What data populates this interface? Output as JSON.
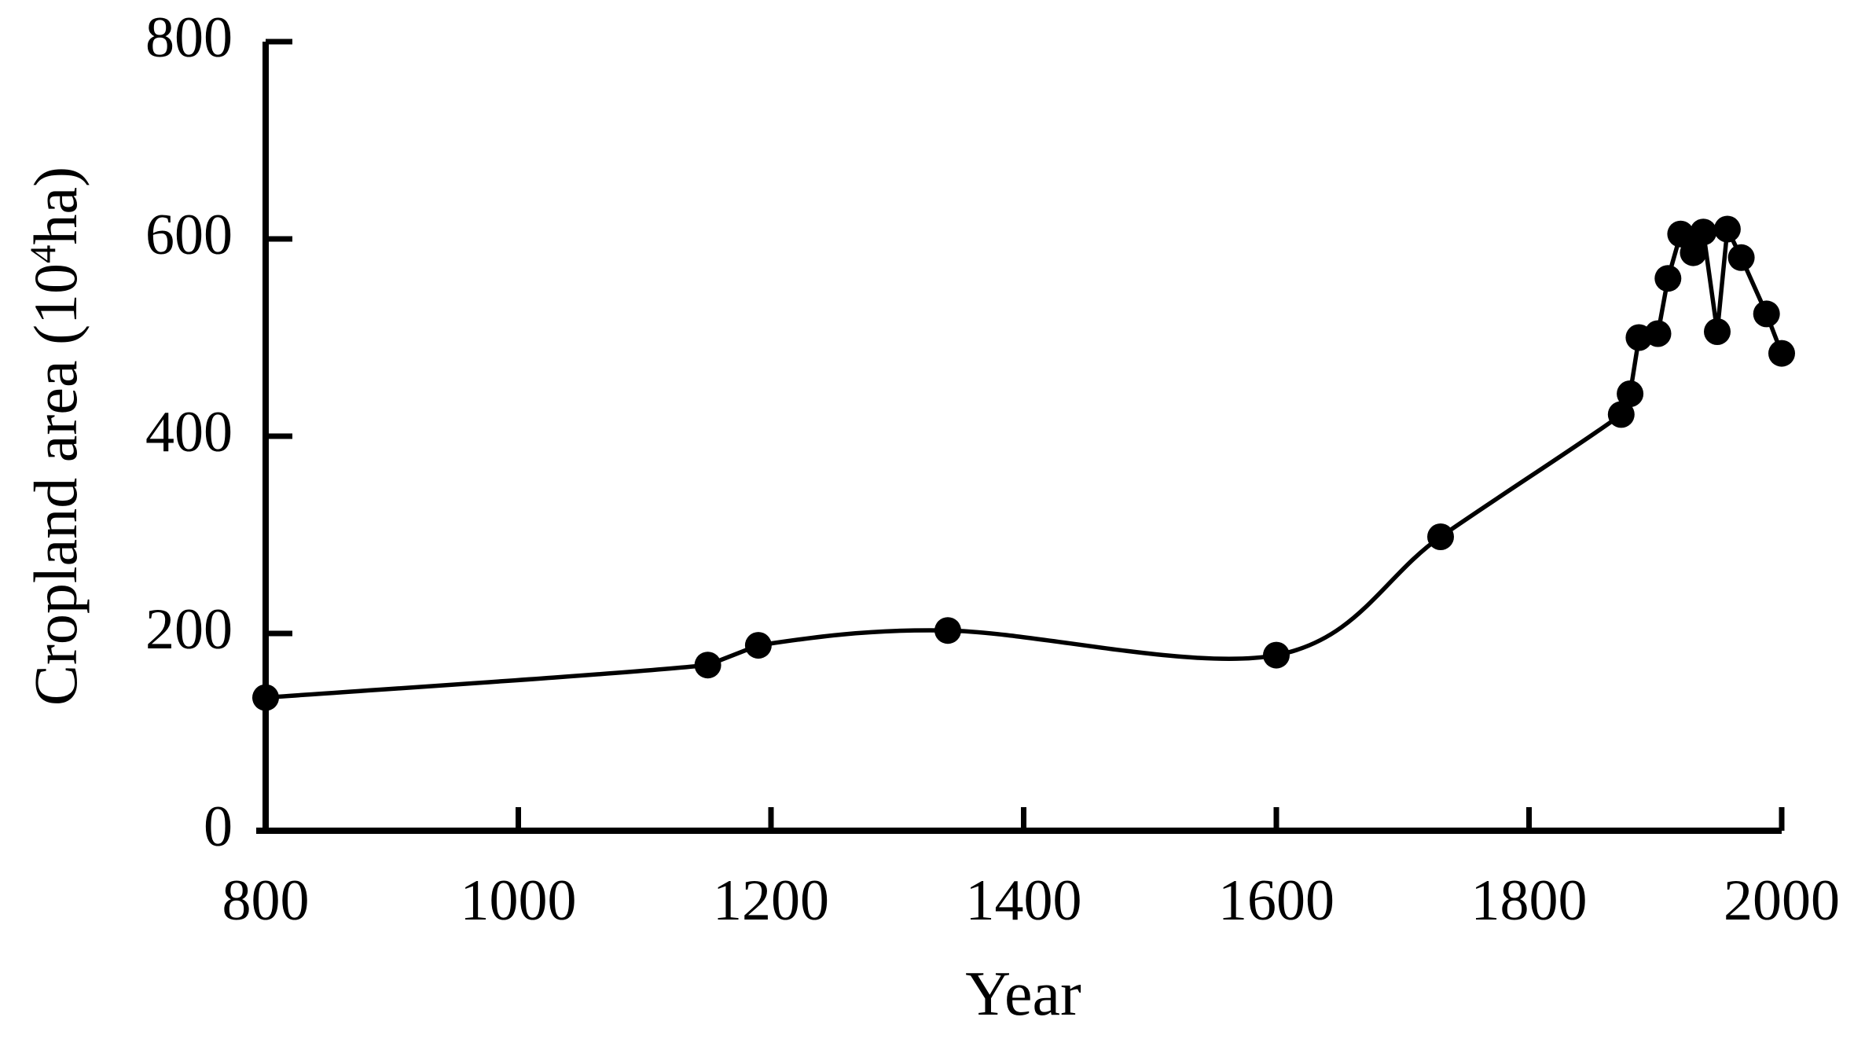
{
  "figure": {
    "background_color": "#ffffff",
    "axis_color": "#000000",
    "line_color": "#000000",
    "marker_color": "#000000",
    "text_color": "#000000"
  },
  "chart_data": {
    "type": "line",
    "title": "",
    "xlabel": "Year",
    "ylabel": "Cropland area (10⁴ha)",
    "ylabel_parts": {
      "base": "Cropland area (10",
      "superscript": "4",
      "suffix": "ha)"
    },
    "series": [
      {
        "name": "Cropland area",
        "x": [
          800,
          1150,
          1190,
          1340,
          1600,
          1730,
          1873,
          1880,
          1887,
          1902,
          1910,
          1920,
          1930,
          1938,
          1949,
          1957,
          1968,
          1988,
          2000
        ],
        "y": [
          135,
          168,
          188,
          203,
          178,
          298,
          422,
          443,
          500,
          504,
          560,
          605,
          586,
          607,
          506,
          610,
          581,
          524,
          484
        ]
      }
    ],
    "xlim": [
      800,
      2000
    ],
    "ylim": [
      0,
      800
    ],
    "xticks": [
      800,
      1000,
      1200,
      1400,
      1600,
      1800,
      2000
    ],
    "yticks": [
      0,
      200,
      400,
      600,
      800
    ],
    "grid": false,
    "legend_position": "none",
    "marker": "circle"
  }
}
